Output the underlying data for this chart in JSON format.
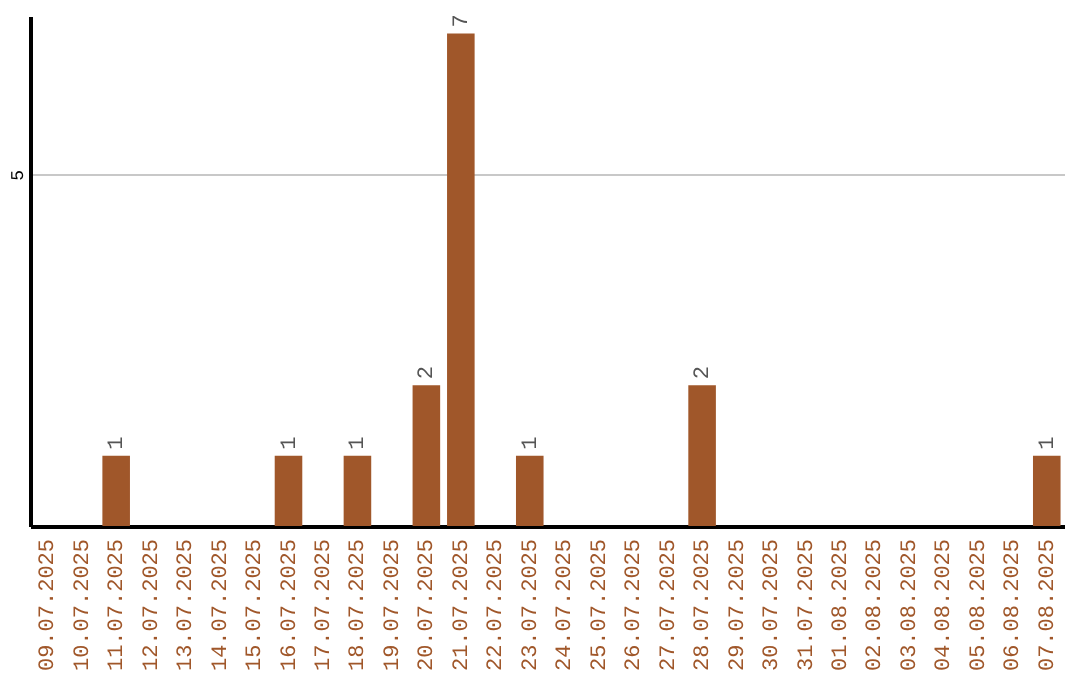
{
  "chart_data": {
    "type": "bar",
    "categories": [
      "09.07.2025",
      "10.07.2025",
      "11.07.2025",
      "12.07.2025",
      "13.07.2025",
      "14.07.2025",
      "15.07.2025",
      "16.07.2025",
      "17.07.2025",
      "18.07.2025",
      "19.07.2025",
      "20.07.2025",
      "21.07.2025",
      "22.07.2025",
      "23.07.2025",
      "24.07.2025",
      "25.07.2025",
      "26.07.2025",
      "27.07.2025",
      "28.07.2025",
      "29.07.2025",
      "30.07.2025",
      "31.07.2025",
      "01.08.2025",
      "02.08.2025",
      "03.08.2025",
      "04.08.2025",
      "05.08.2025",
      "06.08.2025",
      "07.08.2025"
    ],
    "values": [
      0,
      0,
      1,
      0,
      0,
      0,
      0,
      1,
      0,
      1,
      0,
      2,
      7,
      0,
      1,
      0,
      0,
      0,
      0,
      2,
      0,
      0,
      0,
      0,
      0,
      0,
      0,
      0,
      0,
      1
    ],
    "value_labels": [
      null,
      null,
      "1",
      null,
      null,
      null,
      null,
      "1",
      null,
      "1",
      null,
      "2",
      "7",
      null,
      "1",
      null,
      null,
      null,
      null,
      "2",
      null,
      null,
      null,
      null,
      null,
      null,
      null,
      null,
      null,
      "1"
    ],
    "color": "#a0572a",
    "ylim": [
      0,
      7.25
    ],
    "yticks": [
      5
    ],
    "grid": "y"
  }
}
